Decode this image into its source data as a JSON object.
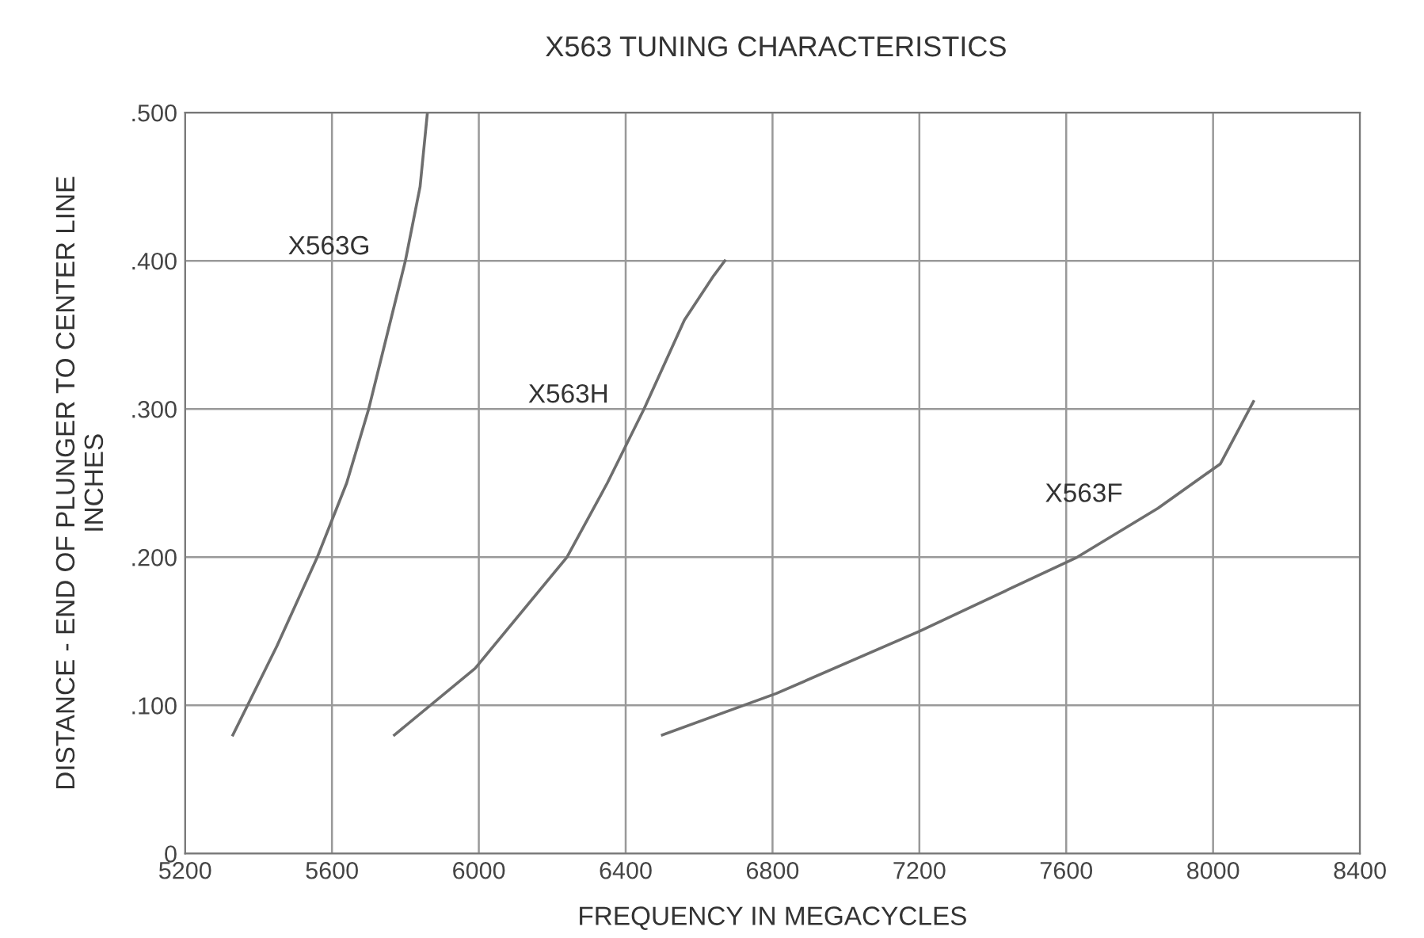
{
  "chart_data": {
    "type": "line",
    "title": "X563 TUNING CHARACTERISTICS",
    "xlabel": "FREQUENCY IN MEGACYCLES",
    "ylabel": "DISTANCE - END OF PLUNGER TO CENTER LINE\nINCHES",
    "series": [
      {
        "name": "X563G",
        "color": "#6e6e6e",
        "x": [
          5330,
          5450,
          5560,
          5640,
          5700,
          5760,
          5800,
          5840,
          5860
        ],
        "values": [
          0.08,
          0.14,
          0.2,
          0.25,
          0.3,
          0.36,
          0.4,
          0.45,
          0.5
        ]
      },
      {
        "name": "X563H",
        "color": "#6e6e6e",
        "x": [
          5770,
          5990,
          6240,
          6350,
          6450,
          6560,
          6640,
          6670
        ],
        "values": [
          0.08,
          0.125,
          0.2,
          0.25,
          0.3,
          0.36,
          0.39,
          0.4
        ]
      },
      {
        "name": "X563F",
        "color": "#6e6e6e",
        "x": [
          6500,
          6810,
          7200,
          7630,
          7850,
          8020,
          8110
        ],
        "values": [
          0.08,
          0.108,
          0.15,
          0.2,
          0.233,
          0.263,
          0.305
        ]
      }
    ],
    "xlim": [
      5200,
      8400
    ],
    "xticks": [
      5200,
      5600,
      6000,
      6400,
      6800,
      7200,
      7600,
      8000,
      8400
    ],
    "ylim": [
      0,
      0.5
    ],
    "yticks": [
      {
        "value": 0,
        "label": "0"
      },
      {
        "value": 0.1,
        "label": ".100"
      },
      {
        "value": 0.2,
        "label": ".200"
      },
      {
        "value": 0.3,
        "label": ".300"
      },
      {
        "value": 0.4,
        "label": ".400"
      },
      {
        "value": 0.5,
        "label": ".500"
      }
    ],
    "grid": true
  }
}
